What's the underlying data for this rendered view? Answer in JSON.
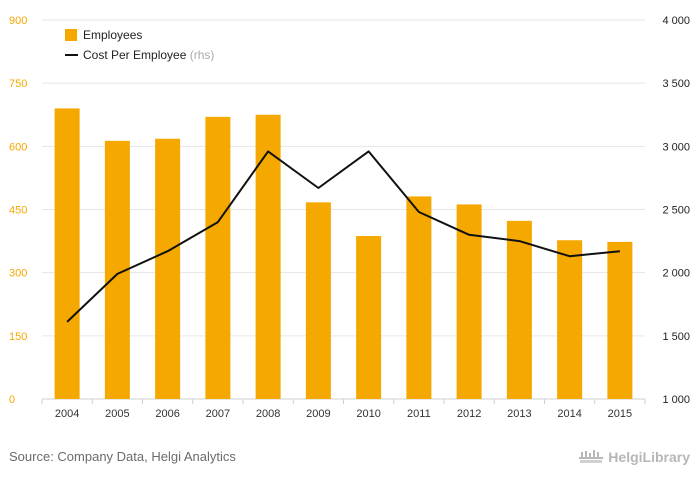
{
  "chart_data": {
    "type": "bar",
    "categories": [
      "2004",
      "2005",
      "2006",
      "2007",
      "2008",
      "2009",
      "2010",
      "2011",
      "2012",
      "2013",
      "2014",
      "2015"
    ],
    "series": [
      {
        "name": "Employees",
        "type": "bar",
        "axis": "left",
        "color": "#F5A800",
        "values": [
          690,
          613,
          618,
          670,
          675,
          467,
          387,
          481,
          462,
          423,
          377,
          373
        ]
      },
      {
        "name": "Cost Per Employee",
        "legend_suffix": "(rhs)",
        "type": "line",
        "axis": "right",
        "color": "#111111",
        "values": [
          1610,
          1990,
          2170,
          2400,
          2960,
          2670,
          2960,
          2480,
          2300,
          2250,
          2130,
          2170
        ]
      }
    ],
    "left_axis": {
      "ylim": [
        0,
        900
      ],
      "ticks": [
        0,
        150,
        300,
        450,
        600,
        750,
        900
      ],
      "tick_labels": [
        "0",
        "150",
        "300",
        "450",
        "600",
        "750",
        "900"
      ],
      "label_color": "#F5A800"
    },
    "right_axis": {
      "ylim": [
        1000,
        4000
      ],
      "ticks": [
        1000,
        1500,
        2000,
        2500,
        3000,
        3500,
        4000
      ],
      "tick_labels": [
        "1 000",
        "1 500",
        "2 000",
        "2 500",
        "3 000",
        "3 500",
        "4 000"
      ],
      "label_color": "#222222"
    },
    "grid": true,
    "legend_position": "top-left"
  },
  "footer": {
    "source": "Source: Company Data, Helgi Analytics",
    "brand": "HelgiLibrary"
  }
}
